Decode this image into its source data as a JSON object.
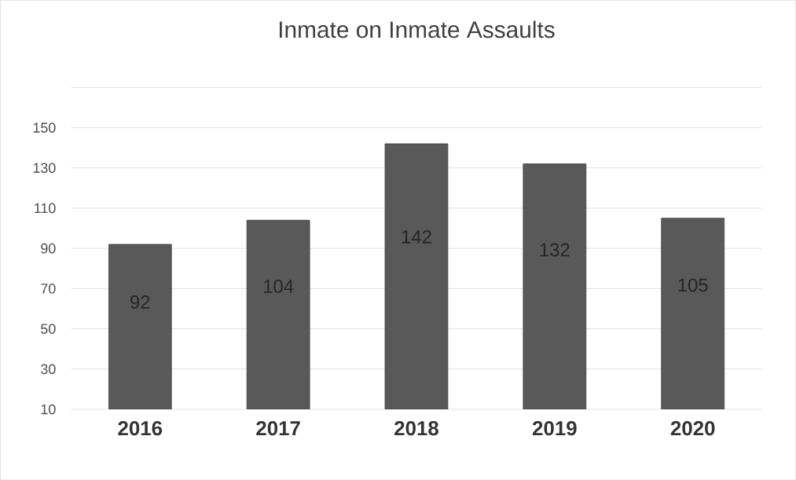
{
  "chart_data": {
    "type": "bar",
    "title": "Inmate on Inmate Assaults",
    "categories": [
      "2016",
      "2017",
      "2018",
      "2019",
      "2020"
    ],
    "values": [
      92,
      104,
      142,
      132,
      105
    ],
    "color": "#595959",
    "ylim": [
      10,
      170
    ],
    "yticks": [
      10,
      30,
      50,
      70,
      90,
      110,
      130,
      150,
      {
        "value": 170,
        "label": null
      }
    ],
    "grid": "y",
    "data_labels": true
  }
}
